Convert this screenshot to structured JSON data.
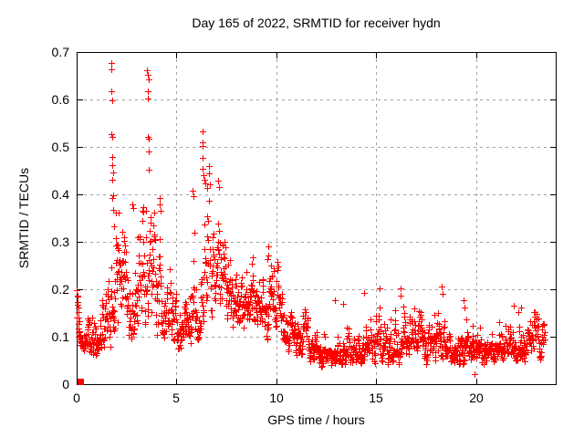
{
  "chart_data": {
    "type": "scatter",
    "title": "Day 165 of 2022, SRMTID for receiver hydn",
    "xlabel": "GPS time / hours",
    "ylabel": "SRMTID / TECUs",
    "xlim": [
      0,
      24
    ],
    "ylim": [
      0,
      0.7
    ],
    "xticks": {
      "values": [
        0,
        5,
        10,
        15,
        20
      ],
      "labels": [
        "0",
        "5",
        "10",
        "15",
        "20"
      ]
    },
    "yticks": {
      "values": [
        0,
        0.1,
        0.2,
        0.3,
        0.4,
        0.5,
        0.6,
        0.7
      ],
      "labels": [
        "0",
        "0.1",
        "0.2",
        "0.3",
        "0.4",
        "0.5",
        "0.6",
        "0.7"
      ]
    },
    "grid": {
      "show": true,
      "color": "#a0a0a0",
      "dash": "3 4"
    },
    "colors": {
      "marker": "#ff0000",
      "axis": "#000000",
      "text": "#000000",
      "background": "#ffffff"
    },
    "marker": {
      "shape": "plus",
      "size": 7
    },
    "origin_marker": {
      "shape": "filled-square",
      "x": 0.2,
      "y": 0.005,
      "size": 7
    },
    "sampling": {
      "start": 0.02,
      "end": 23.45,
      "step": 0.0125,
      "seed": 165,
      "ar": 0.72,
      "mix": 0.28,
      "gain": 4
    },
    "envelope": {
      "median": [
        [
          0,
          0.16
        ],
        [
          0.15,
          0.115
        ],
        [
          0.4,
          0.1
        ],
        [
          0.8,
          0.095
        ],
        [
          1.2,
          0.13
        ],
        [
          1.6,
          0.17
        ],
        [
          1.85,
          0.21
        ],
        [
          2.1,
          0.19
        ],
        [
          2.6,
          0.16
        ],
        [
          3.1,
          0.17
        ],
        [
          3.55,
          0.21
        ],
        [
          4.1,
          0.19
        ],
        [
          4.6,
          0.16
        ],
        [
          5.1,
          0.115
        ],
        [
          5.6,
          0.13
        ],
        [
          6.1,
          0.2
        ],
        [
          6.5,
          0.27
        ],
        [
          6.9,
          0.3
        ],
        [
          7.3,
          0.24
        ],
        [
          7.8,
          0.18
        ],
        [
          8.5,
          0.16
        ],
        [
          9.1,
          0.15
        ],
        [
          9.6,
          0.175
        ],
        [
          10.1,
          0.14
        ],
        [
          10.7,
          0.105
        ],
        [
          11.3,
          0.085
        ],
        [
          11.9,
          0.07
        ],
        [
          12.5,
          0.06
        ],
        [
          13.2,
          0.06
        ],
        [
          13.9,
          0.07
        ],
        [
          14.5,
          0.08
        ],
        [
          15.2,
          0.08
        ],
        [
          16.0,
          0.075
        ],
        [
          16.8,
          0.085
        ],
        [
          17.6,
          0.075
        ],
        [
          18.3,
          0.09
        ],
        [
          19.0,
          0.075
        ],
        [
          19.7,
          0.068
        ],
        [
          20.4,
          0.07
        ],
        [
          21.2,
          0.075
        ],
        [
          22.0,
          0.08
        ],
        [
          22.8,
          0.082
        ],
        [
          23.45,
          0.1
        ]
      ],
      "sigma": [
        [
          0,
          0.22
        ],
        [
          0.8,
          0.3
        ],
        [
          1.6,
          0.42
        ],
        [
          2.4,
          0.35
        ],
        [
          3.2,
          0.38
        ],
        [
          3.8,
          0.42
        ],
        [
          4.6,
          0.35
        ],
        [
          5.2,
          0.3
        ],
        [
          6.0,
          0.38
        ],
        [
          6.9,
          0.28
        ],
        [
          7.6,
          0.32
        ],
        [
          8.6,
          0.3
        ],
        [
          9.6,
          0.32
        ],
        [
          10.5,
          0.32
        ],
        [
          11.5,
          0.33
        ],
        [
          12.5,
          0.35
        ],
        [
          14.0,
          0.35
        ],
        [
          15.0,
          0.35
        ],
        [
          16.0,
          0.35
        ],
        [
          17.0,
          0.33
        ],
        [
          18.3,
          0.36
        ],
        [
          19.5,
          0.34
        ],
        [
          20.5,
          0.33
        ],
        [
          21.5,
          0.34
        ],
        [
          22.5,
          0.32
        ],
        [
          23.45,
          0.3
        ]
      ],
      "max": [
        [
          0,
          0.2
        ],
        [
          0.5,
          0.23
        ],
        [
          1.0,
          0.26
        ],
        [
          1.5,
          0.44
        ],
        [
          1.9,
          0.48
        ],
        [
          2.3,
          0.3
        ],
        [
          2.85,
          0.38
        ],
        [
          3.3,
          0.36
        ],
        [
          3.75,
          0.44
        ],
        [
          4.3,
          0.4
        ],
        [
          4.9,
          0.32
        ],
        [
          5.4,
          0.23
        ],
        [
          5.9,
          0.42
        ],
        [
          6.4,
          0.47
        ],
        [
          7.0,
          0.44
        ],
        [
          7.5,
          0.38
        ],
        [
          8.1,
          0.31
        ],
        [
          8.8,
          0.29
        ],
        [
          9.35,
          0.25
        ],
        [
          9.65,
          0.29
        ],
        [
          10.3,
          0.22
        ],
        [
          10.9,
          0.185
        ],
        [
          11.5,
          0.15
        ],
        [
          12.2,
          0.125
        ],
        [
          13.0,
          0.135
        ],
        [
          13.8,
          0.145
        ],
        [
          14.45,
          0.19
        ],
        [
          15.2,
          0.205
        ],
        [
          15.8,
          0.165
        ],
        [
          16.25,
          0.2
        ],
        [
          17.0,
          0.16
        ],
        [
          17.7,
          0.165
        ],
        [
          18.3,
          0.21
        ],
        [
          18.9,
          0.16
        ],
        [
          19.45,
          0.185
        ],
        [
          20.0,
          0.14
        ],
        [
          20.7,
          0.145
        ],
        [
          21.4,
          0.16
        ],
        [
          22.2,
          0.175
        ],
        [
          23.0,
          0.155
        ],
        [
          23.45,
          0.18
        ]
      ],
      "min": [
        [
          0,
          0.125
        ],
        [
          0.35,
          0.062
        ],
        [
          1.0,
          0.052
        ],
        [
          1.7,
          0.09
        ],
        [
          2.2,
          0.1
        ],
        [
          3.0,
          0.082
        ],
        [
          4.0,
          0.1
        ],
        [
          5.0,
          0.08
        ],
        [
          6.0,
          0.1
        ],
        [
          6.9,
          0.15
        ],
        [
          7.6,
          0.12
        ],
        [
          8.5,
          0.1
        ],
        [
          9.5,
          0.085
        ],
        [
          10.4,
          0.068
        ],
        [
          11.2,
          0.05
        ],
        [
          12.0,
          0.04
        ],
        [
          12.8,
          0.032
        ],
        [
          13.6,
          0.04
        ],
        [
          14.6,
          0.042
        ],
        [
          15.6,
          0.04
        ],
        [
          16.6,
          0.042
        ],
        [
          17.6,
          0.04
        ],
        [
          18.6,
          0.045
        ],
        [
          19.6,
          0.038
        ],
        [
          19.95,
          0.022
        ],
        [
          20.4,
          0.04
        ],
        [
          21.2,
          0.045
        ],
        [
          22.2,
          0.046
        ],
        [
          23.0,
          0.05
        ],
        [
          23.45,
          0.06
        ]
      ]
    },
    "outliers": [
      [
        0.02,
        0.198
      ],
      [
        0.03,
        0.186
      ],
      [
        0.05,
        0.173
      ],
      [
        0.07,
        0.161
      ],
      [
        0.09,
        0.151
      ],
      [
        0.11,
        0.141
      ],
      [
        0.13,
        0.133
      ],
      [
        1.72,
        0.677
      ],
      [
        1.73,
        0.664
      ],
      [
        1.74,
        0.617
      ],
      [
        1.76,
        0.598
      ],
      [
        1.72,
        0.527
      ],
      [
        1.77,
        0.521
      ],
      [
        1.8,
        0.478
      ],
      [
        1.8,
        0.462
      ],
      [
        1.81,
        0.447
      ],
      [
        1.79,
        0.431
      ],
      [
        1.82,
        0.398
      ],
      [
        1.77,
        0.392
      ],
      [
        1.84,
        0.368
      ],
      [
        1.86,
        0.333
      ],
      [
        3.54,
        0.661
      ],
      [
        3.57,
        0.652
      ],
      [
        3.6,
        0.643
      ],
      [
        3.56,
        0.617
      ],
      [
        3.58,
        0.601
      ],
      [
        3.55,
        0.521
      ],
      [
        3.61,
        0.517
      ],
      [
        3.6,
        0.491
      ],
      [
        3.63,
        0.452
      ],
      [
        6.31,
        0.532
      ],
      [
        6.29,
        0.509
      ],
      [
        6.33,
        0.502
      ],
      [
        6.32,
        0.476
      ],
      [
        6.3,
        0.453
      ],
      [
        6.35,
        0.441
      ],
      [
        6.41,
        0.431
      ],
      [
        6.46,
        0.424
      ],
      [
        6.52,
        0.414
      ],
      [
        2.8,
        0.379
      ],
      [
        2.84,
        0.371
      ],
      [
        2.05,
        0.295
      ],
      [
        2.08,
        0.282
      ],
      [
        2.02,
        0.262
      ],
      [
        4.15,
        0.392
      ],
      [
        4.18,
        0.378
      ],
      [
        4.22,
        0.365
      ],
      [
        5.82,
        0.408
      ],
      [
        5.86,
        0.396
      ],
      [
        7.08,
        0.428
      ],
      [
        7.12,
        0.415
      ],
      [
        9.58,
        0.291
      ],
      [
        9.61,
        0.272
      ],
      [
        9.56,
        0.264
      ],
      [
        12.92,
        0.176
      ],
      [
        13.34,
        0.17
      ],
      [
        14.42,
        0.192
      ],
      [
        15.18,
        0.202
      ],
      [
        16.22,
        0.201
      ],
      [
        16.24,
        0.186
      ],
      [
        18.28,
        0.206
      ],
      [
        18.31,
        0.19
      ],
      [
        19.38,
        0.177
      ],
      [
        19.41,
        0.161
      ],
      [
        19.95,
        0.021
      ],
      [
        21.88,
        0.166
      ],
      [
        22.12,
        0.151
      ],
      [
        22.28,
        0.161
      ]
    ]
  }
}
